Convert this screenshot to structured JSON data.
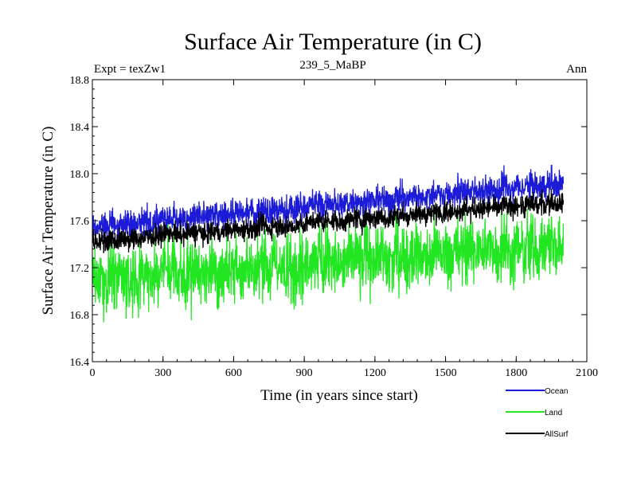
{
  "chart_data": {
    "type": "line",
    "title": "Surface Air Temperature (in C)",
    "subtitle_left": "Expt = texZw1",
    "subtitle_center": "239_5_MaBP",
    "subtitle_right": "Ann",
    "xlabel": "Time (in years since start)",
    "ylabel": "Surface Air Temperature (in C)",
    "xlim": [
      0,
      2100
    ],
    "ylim": [
      16.4,
      18.8
    ],
    "xticks": [
      0,
      300,
      600,
      900,
      1200,
      1500,
      1800,
      2100
    ],
    "xtick_labels": [
      "0",
      "300",
      "600",
      "900",
      "1200",
      "1500",
      "1800",
      "2100"
    ],
    "yticks": [
      16.4,
      16.8,
      17.2,
      17.6,
      18.0,
      18.4,
      18.8
    ],
    "ytick_labels": [
      "16.4",
      "16.8",
      "17.2",
      "17.6",
      "18.0",
      "18.4",
      "18.8"
    ],
    "x_extent": [
      0,
      2000
    ],
    "series": [
      {
        "name": "Ocean",
        "color": "#1c1cd8",
        "trend_start": 17.55,
        "trend_end": 17.92,
        "noise_amplitude": 0.12
      },
      {
        "name": "Land",
        "color": "#22e622",
        "trend_start": 17.1,
        "trend_end": 17.4,
        "noise_amplitude": 0.28
      },
      {
        "name": "AllSurf",
        "color": "#000000",
        "trend_start": 17.42,
        "trend_end": 17.76,
        "noise_amplitude": 0.09
      }
    ],
    "draw_order": [
      "Ocean",
      "Land",
      "AllSurf"
    ],
    "legend_position": "bottom-right"
  }
}
